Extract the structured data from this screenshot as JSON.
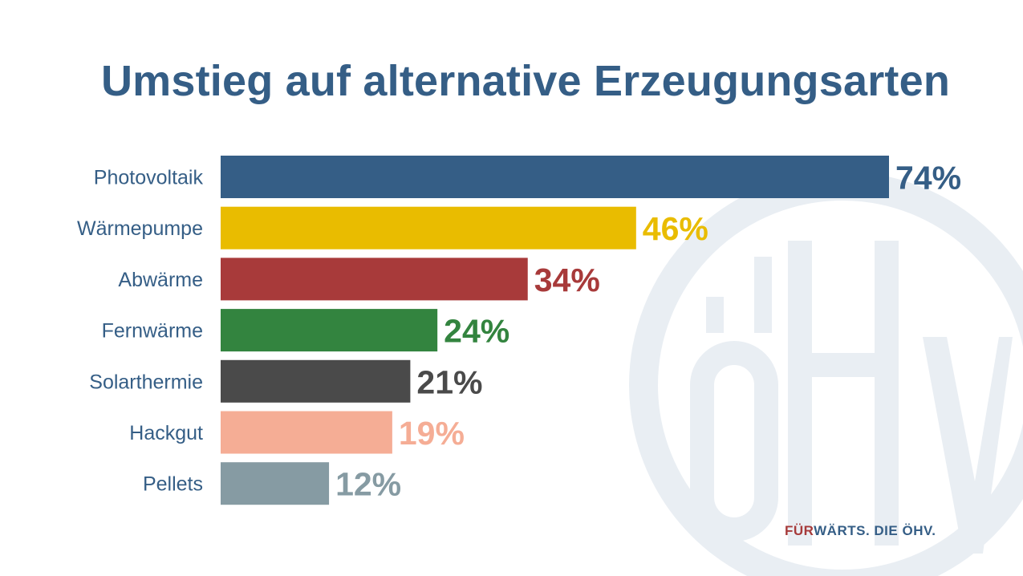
{
  "title": "Umstieg auf alternative Erzeugungsarten",
  "tagline": {
    "part1": "FÜR",
    "part2": "WÄRTS. DIE ÖHV."
  },
  "watermark_logo": "ÖHV",
  "chart_data": {
    "type": "bar",
    "orientation": "horizontal",
    "title": "Umstieg auf alternative Erzeugungsarten",
    "categories": [
      "Photovoltaik",
      "Wärmepumpe",
      "Abwärme",
      "Fernwärme",
      "Solarthermie",
      "Hackgut",
      "Pellets"
    ],
    "values": [
      74,
      46,
      34,
      24,
      21,
      19,
      12
    ],
    "labels": [
      "74%",
      "46%",
      "34%",
      "24%",
      "21%",
      "19%",
      "12%"
    ],
    "colors": [
      "#355E86",
      "#E9BC00",
      "#A83A3A",
      "#33843F",
      "#4A4A4A",
      "#F5AD95",
      "#869BA3"
    ],
    "xlim": [
      0,
      74
    ],
    "grid": false,
    "legend": "none"
  }
}
